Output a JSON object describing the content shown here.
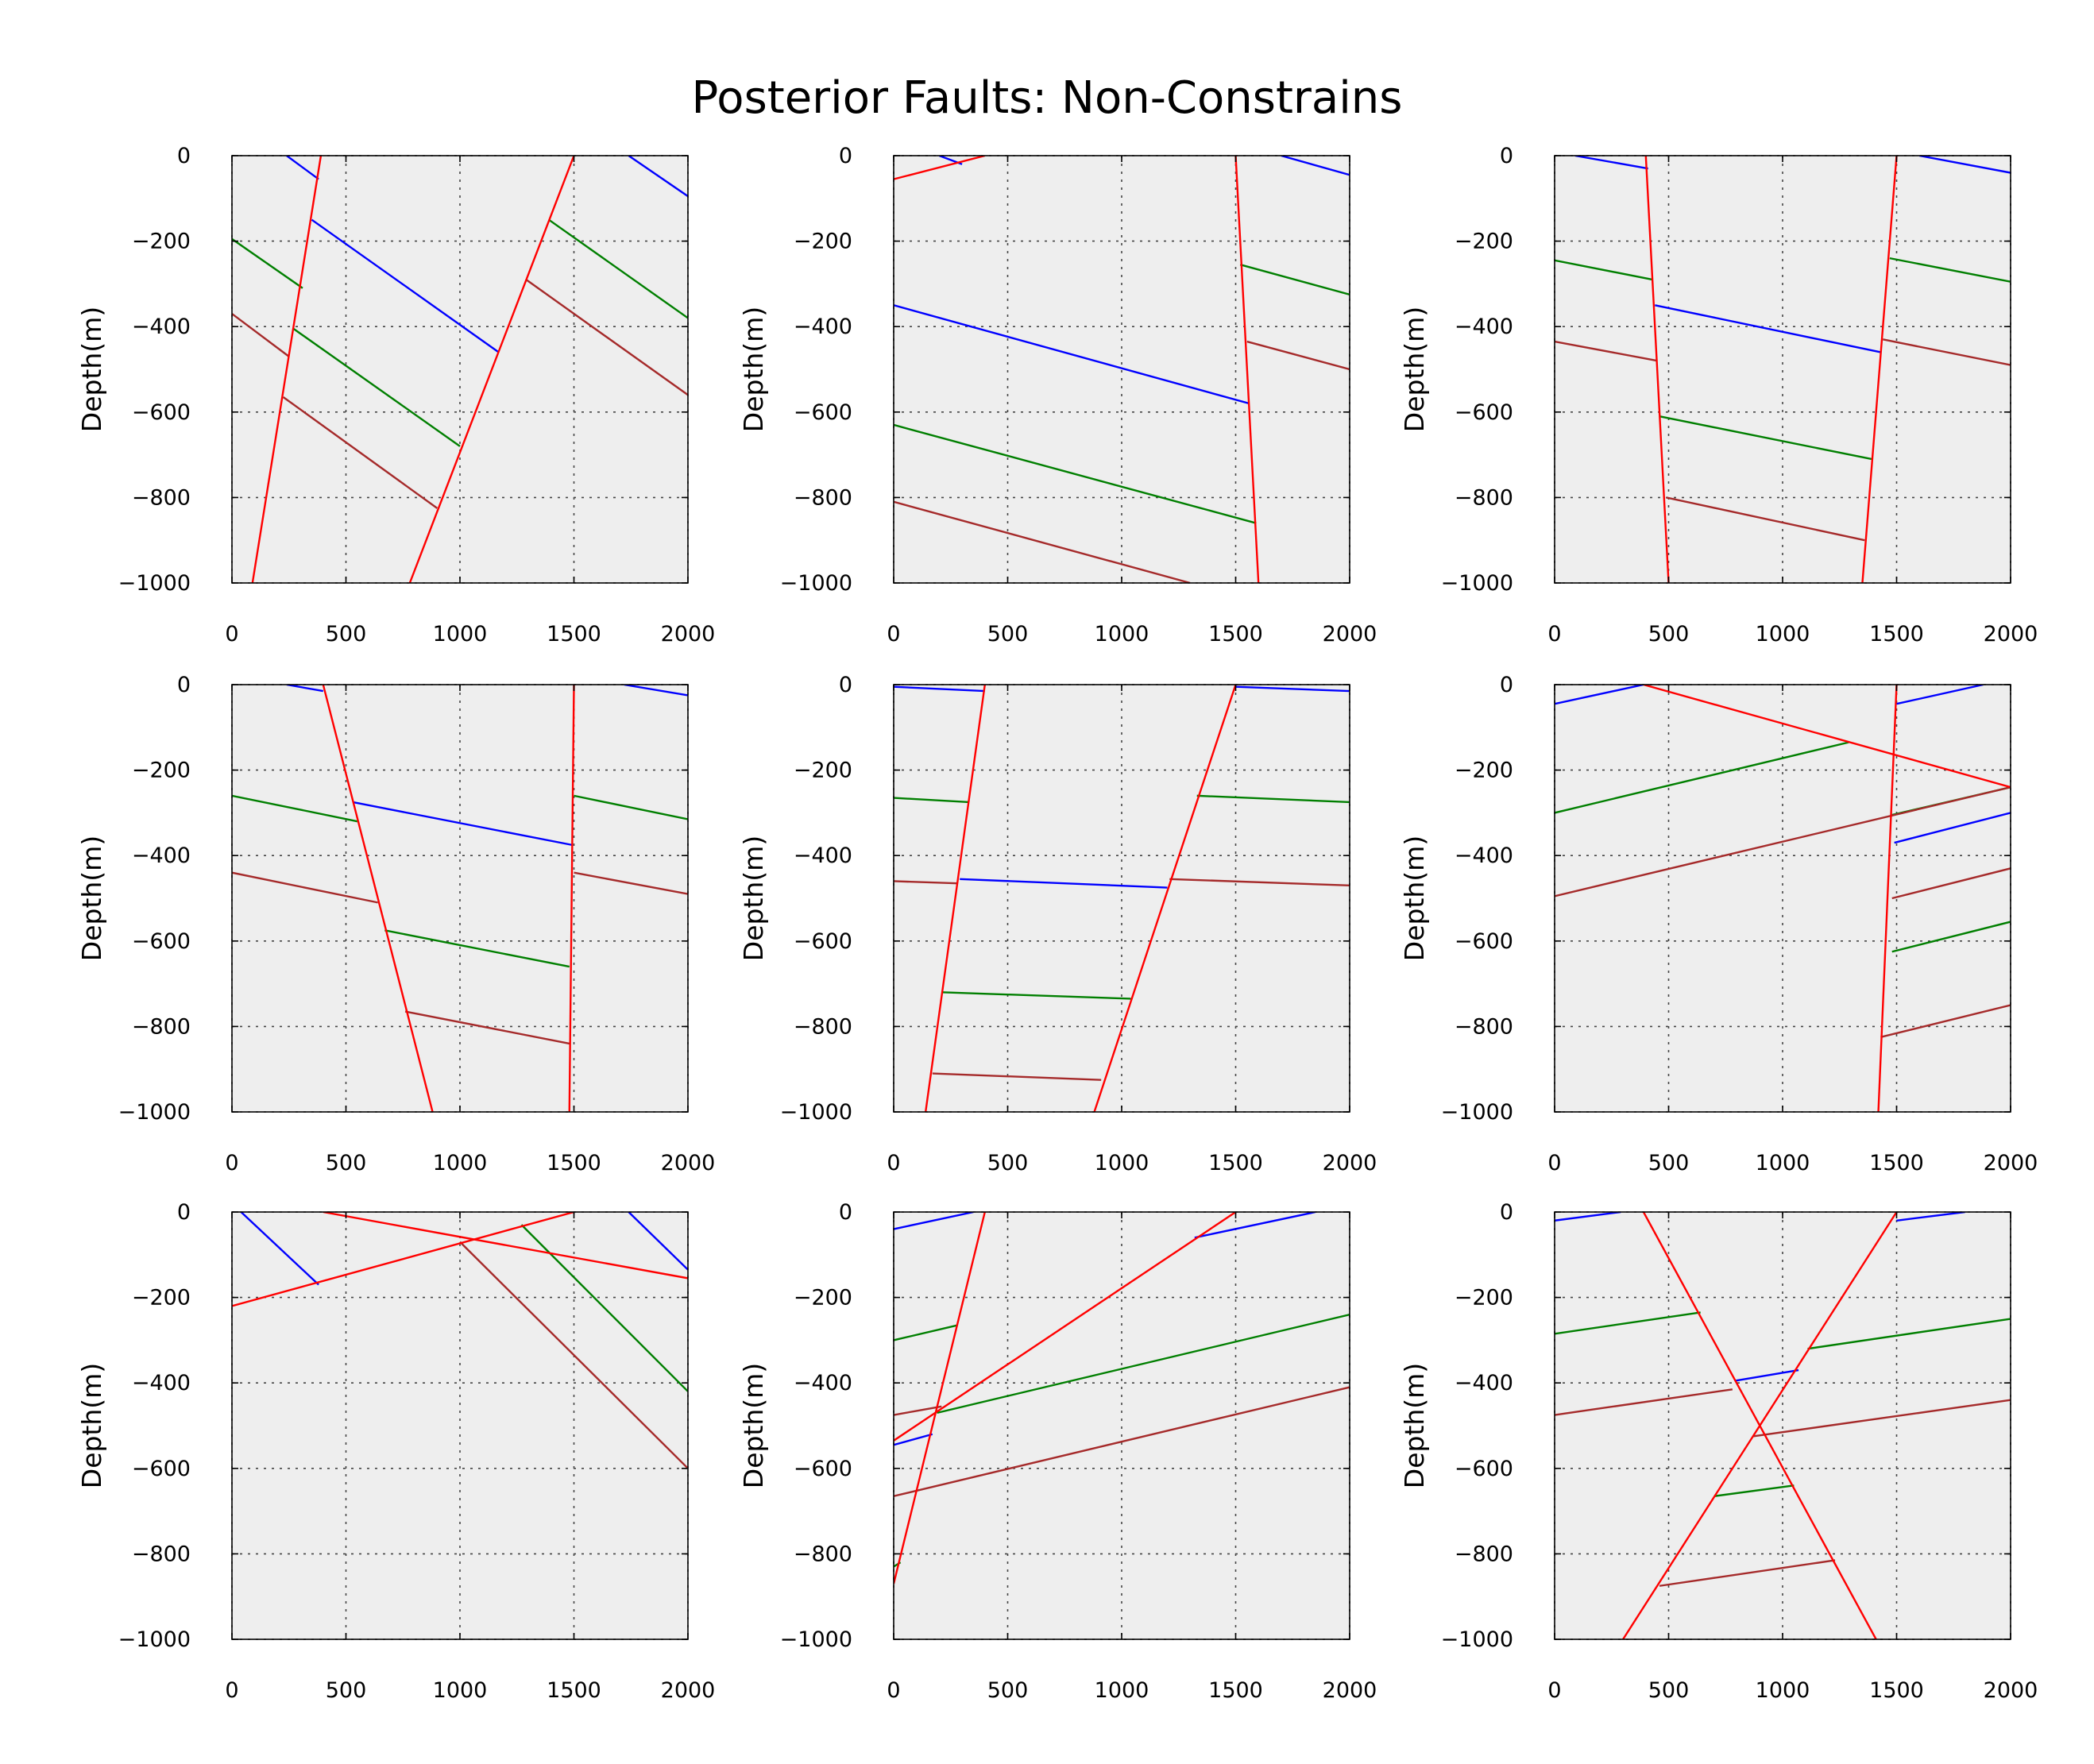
{
  "title": "Posterior Faults: Non-Constrains",
  "colors": {
    "background": "#eeeeee",
    "blue": "#0000ff",
    "green": "#007f00",
    "brown": "#a52a2a",
    "red": "#ff0000"
  },
  "chart_data": [
    {
      "type": "line",
      "ylabel": "Depth(m)",
      "xlim": [
        0,
        2000
      ],
      "ylim": [
        -1000,
        0
      ],
      "xticks": [
        "0",
        "500",
        "1000",
        "1500",
        "2000"
      ],
      "yticks": [
        "0",
        "−200",
        "−400",
        "−600",
        "−800",
        "−1000"
      ],
      "grid": true,
      "segments": [
        {
          "color": "blue",
          "x": [
            240,
            380
          ],
          "y": [
            0,
            -55
          ]
        },
        {
          "color": "blue",
          "x": [
            350,
            1170
          ],
          "y": [
            -150,
            -460
          ]
        },
        {
          "color": "blue",
          "x": [
            1740,
            2000
          ],
          "y": [
            0,
            -95
          ]
        },
        {
          "color": "green",
          "x": [
            0,
            310
          ],
          "y": [
            -195,
            -310
          ]
        },
        {
          "color": "green",
          "x": [
            270,
            1000
          ],
          "y": [
            -405,
            -680
          ]
        },
        {
          "color": "green",
          "x": [
            1390,
            2000
          ],
          "y": [
            -150,
            -380
          ]
        },
        {
          "color": "brown",
          "x": [
            0,
            250
          ],
          "y": [
            -370,
            -470
          ]
        },
        {
          "color": "brown",
          "x": [
            225,
            900
          ],
          "y": [
            -565,
            -825
          ]
        },
        {
          "color": "brown",
          "x": [
            1290,
            2000
          ],
          "y": [
            -290,
            -560
          ]
        },
        {
          "color": "red",
          "x": [
            90,
            390
          ],
          "y": [
            -1000,
            0
          ]
        },
        {
          "color": "red",
          "x": [
            780,
            1500
          ],
          "y": [
            -1000,
            0
          ]
        }
      ]
    },
    {
      "type": "line",
      "ylabel": "Depth(m)",
      "xlim": [
        0,
        2000
      ],
      "ylim": [
        -1000,
        0
      ],
      "xticks": [
        "0",
        "500",
        "1000",
        "1500",
        "2000"
      ],
      "yticks": [
        "0",
        "−200",
        "−400",
        "−600",
        "−800",
        "−1000"
      ],
      "grid": true,
      "segments": [
        {
          "color": "blue",
          "x": [
            200,
            300
          ],
          "y": [
            0,
            -20
          ]
        },
        {
          "color": "blue",
          "x": [
            0,
            1560
          ],
          "y": [
            -350,
            -580
          ]
        },
        {
          "color": "blue",
          "x": [
            1700,
            2000
          ],
          "y": [
            0,
            -45
          ]
        },
        {
          "color": "green",
          "x": [
            0,
            1590
          ],
          "y": [
            -630,
            -860
          ]
        },
        {
          "color": "green",
          "x": [
            1520,
            2000
          ],
          "y": [
            -255,
            -325
          ]
        },
        {
          "color": "brown",
          "x": [
            0,
            1300
          ],
          "y": [
            -810,
            -1000
          ]
        },
        {
          "color": "brown",
          "x": [
            1550,
            2000
          ],
          "y": [
            -435,
            -500
          ]
        },
        {
          "color": "red",
          "x": [
            0,
            400
          ],
          "y": [
            -55,
            0
          ]
        },
        {
          "color": "red",
          "x": [
            1500,
            1600
          ],
          "y": [
            0,
            -1000
          ]
        }
      ]
    },
    {
      "type": "line",
      "ylabel": "Depth(m)",
      "xlim": [
        0,
        2000
      ],
      "ylim": [
        -1000,
        0
      ],
      "xticks": [
        "0",
        "500",
        "1000",
        "1500",
        "2000"
      ],
      "yticks": [
        "0",
        "−200",
        "−400",
        "−600",
        "−800",
        "−1000"
      ],
      "grid": true,
      "segments": [
        {
          "color": "blue",
          "x": [
            90,
            410
          ],
          "y": [
            0,
            -30
          ]
        },
        {
          "color": "blue",
          "x": [
            440,
            1430
          ],
          "y": [
            -350,
            -460
          ]
        },
        {
          "color": "blue",
          "x": [
            1600,
            2000
          ],
          "y": [
            0,
            -40
          ]
        },
        {
          "color": "green",
          "x": [
            0,
            430
          ],
          "y": [
            -245,
            -290
          ]
        },
        {
          "color": "green",
          "x": [
            460,
            1390
          ],
          "y": [
            -610,
            -710
          ]
        },
        {
          "color": "green",
          "x": [
            1470,
            2000
          ],
          "y": [
            -240,
            -295
          ]
        },
        {
          "color": "brown",
          "x": [
            0,
            450
          ],
          "y": [
            -435,
            -480
          ]
        },
        {
          "color": "brown",
          "x": [
            490,
            1360
          ],
          "y": [
            -800,
            -900
          ]
        },
        {
          "color": "brown",
          "x": [
            1440,
            2000
          ],
          "y": [
            -430,
            -490
          ]
        },
        {
          "color": "red",
          "x": [
            400,
            500
          ],
          "y": [
            0,
            -1000
          ]
        },
        {
          "color": "red",
          "x": [
            1500,
            1350
          ],
          "y": [
            0,
            -1000
          ]
        }
      ]
    },
    {
      "type": "line",
      "ylabel": "Depth(m)",
      "xlim": [
        0,
        2000
      ],
      "ylim": [
        -1000,
        0
      ],
      "xticks": [
        "0",
        "500",
        "1000",
        "1500",
        "2000"
      ],
      "yticks": [
        "0",
        "−200",
        "−400",
        "−600",
        "−800",
        "−1000"
      ],
      "grid": true,
      "segments": [
        {
          "color": "blue",
          "x": [
            240,
            400
          ],
          "y": [
            0,
            -15
          ]
        },
        {
          "color": "blue",
          "x": [
            530,
            1490
          ],
          "y": [
            -275,
            -375
          ]
        },
        {
          "color": "blue",
          "x": [
            1720,
            2000
          ],
          "y": [
            0,
            -25
          ]
        },
        {
          "color": "green",
          "x": [
            0,
            550
          ],
          "y": [
            -260,
            -320
          ]
        },
        {
          "color": "green",
          "x": [
            670,
            1480
          ],
          "y": [
            -575,
            -660
          ]
        },
        {
          "color": "green",
          "x": [
            1500,
            2000
          ],
          "y": [
            -260,
            -315
          ]
        },
        {
          "color": "brown",
          "x": [
            0,
            640
          ],
          "y": [
            -440,
            -510
          ]
        },
        {
          "color": "brown",
          "x": [
            760,
            1480
          ],
          "y": [
            -765,
            -840
          ]
        },
        {
          "color": "brown",
          "x": [
            1500,
            2000
          ],
          "y": [
            -440,
            -490
          ]
        },
        {
          "color": "red",
          "x": [
            400,
            880
          ],
          "y": [
            0,
            -1000
          ]
        },
        {
          "color": "red",
          "x": [
            1500,
            1480
          ],
          "y": [
            0,
            -1000
          ]
        }
      ]
    },
    {
      "type": "line",
      "ylabel": "Depth(m)",
      "xlim": [
        0,
        2000
      ],
      "ylim": [
        -1000,
        0
      ],
      "xticks": [
        "0",
        "500",
        "1000",
        "1500",
        "2000"
      ],
      "yticks": [
        "0",
        "−200",
        "−400",
        "−600",
        "−800",
        "−1000"
      ],
      "grid": true,
      "segments": [
        {
          "color": "blue",
          "x": [
            0,
            400
          ],
          "y": [
            -5,
            -15
          ]
        },
        {
          "color": "blue",
          "x": [
            290,
            1200
          ],
          "y": [
            -455,
            -475
          ]
        },
        {
          "color": "blue",
          "x": [
            1500,
            2000
          ],
          "y": [
            -5,
            -15
          ]
        },
        {
          "color": "green",
          "x": [
            0,
            330
          ],
          "y": [
            -265,
            -275
          ]
        },
        {
          "color": "green",
          "x": [
            210,
            1040
          ],
          "y": [
            -720,
            -735
          ]
        },
        {
          "color": "green",
          "x": [
            1330,
            2000
          ],
          "y": [
            -260,
            -275
          ]
        },
        {
          "color": "brown",
          "x": [
            0,
            280
          ],
          "y": [
            -460,
            -465
          ]
        },
        {
          "color": "brown",
          "x": [
            170,
            910
          ],
          "y": [
            -910,
            -925
          ]
        },
        {
          "color": "brown",
          "x": [
            1210,
            2000
          ],
          "y": [
            -455,
            -470
          ]
        },
        {
          "color": "red",
          "x": [
            140,
            400
          ],
          "y": [
            -1000,
            0
          ]
        },
        {
          "color": "red",
          "x": [
            880,
            1500
          ],
          "y": [
            -1000,
            0
          ]
        }
      ]
    },
    {
      "type": "line",
      "ylabel": "Depth(m)",
      "xlim": [
        0,
        2000
      ],
      "ylim": [
        -1000,
        0
      ],
      "xticks": [
        "0",
        "500",
        "1000",
        "1500",
        "2000"
      ],
      "yticks": [
        "0",
        "−200",
        "−400",
        "−600",
        "−800",
        "−1000"
      ],
      "grid": true,
      "segments": [
        {
          "color": "blue",
          "x": [
            0,
            390
          ],
          "y": [
            -45,
            0
          ]
        },
        {
          "color": "blue",
          "x": [
            1500,
            1880
          ],
          "y": [
            -45,
            0
          ]
        },
        {
          "color": "blue",
          "x": [
            1490,
            2000
          ],
          "y": [
            -370,
            -300
          ]
        },
        {
          "color": "green",
          "x": [
            0,
            1290
          ],
          "y": [
            -300,
            -135
          ]
        },
        {
          "color": "green",
          "x": [
            1480,
            2000
          ],
          "y": [
            -305,
            -240
          ]
        },
        {
          "color": "green",
          "x": [
            1480,
            2000
          ],
          "y": [
            -625,
            -555
          ]
        },
        {
          "color": "brown",
          "x": [
            0,
            2000
          ],
          "y": [
            -495,
            -240
          ]
        },
        {
          "color": "brown",
          "x": [
            1480,
            2000
          ],
          "y": [
            -500,
            -430
          ]
        },
        {
          "color": "brown",
          "x": [
            1430,
            2000
          ],
          "y": [
            -825,
            -750
          ]
        },
        {
          "color": "red",
          "x": [
            390,
            2000
          ],
          "y": [
            0,
            -240
          ]
        },
        {
          "color": "red",
          "x": [
            1500,
            1420
          ],
          "y": [
            0,
            -1000
          ]
        }
      ]
    },
    {
      "type": "line",
      "ylabel": "Depth(m)",
      "xlim": [
        0,
        2000
      ],
      "ylim": [
        -1000,
        0
      ],
      "xticks": [
        "0",
        "500",
        "1000",
        "1500",
        "2000"
      ],
      "yticks": [
        "0",
        "−200",
        "−400",
        "−600",
        "−800",
        "−1000"
      ],
      "grid": true,
      "segments": [
        {
          "color": "blue",
          "x": [
            40,
            380
          ],
          "y": [
            0,
            -170
          ]
        },
        {
          "color": "blue",
          "x": [
            1740,
            2000
          ],
          "y": [
            0,
            -135
          ]
        },
        {
          "color": "green",
          "x": [
            1270,
            2000
          ],
          "y": [
            -30,
            -420
          ]
        },
        {
          "color": "brown",
          "x": [
            1000,
            2000
          ],
          "y": [
            -70,
            -600
          ]
        },
        {
          "color": "red",
          "x": [
            0,
            1500
          ],
          "y": [
            -220,
            0
          ]
        },
        {
          "color": "red",
          "x": [
            400,
            2000
          ],
          "y": [
            0,
            -155
          ]
        }
      ]
    },
    {
      "type": "line",
      "ylabel": "Depth(m)",
      "xlim": [
        0,
        2000
      ],
      "ylim": [
        -1000,
        0
      ],
      "xticks": [
        "0",
        "500",
        "1000",
        "1500",
        "2000"
      ],
      "yticks": [
        "0",
        "−200",
        "−400",
        "−600",
        "−800",
        "−1000"
      ],
      "grid": true,
      "segments": [
        {
          "color": "blue",
          "x": [
            0,
            350
          ],
          "y": [
            -40,
            0
          ]
        },
        {
          "color": "blue",
          "x": [
            1320,
            1850
          ],
          "y": [
            -60,
            0
          ]
        },
        {
          "color": "blue",
          "x": [
            0,
            170
          ],
          "y": [
            -545,
            -520
          ]
        },
        {
          "color": "green",
          "x": [
            0,
            280
          ],
          "y": [
            -300,
            -265
          ]
        },
        {
          "color": "green",
          "x": [
            190,
            2000
          ],
          "y": [
            -470,
            -240
          ]
        },
        {
          "color": "green",
          "x": [
            0,
            30
          ],
          "y": [
            -830,
            -820
          ]
        },
        {
          "color": "brown",
          "x": [
            0,
            210
          ],
          "y": [
            -475,
            -455
          ]
        },
        {
          "color": "brown",
          "x": [
            0,
            2000
          ],
          "y": [
            -665,
            -410
          ]
        },
        {
          "color": "red",
          "x": [
            0,
            400
          ],
          "y": [
            -870,
            0
          ]
        },
        {
          "color": "red",
          "x": [
            0,
            1500
          ],
          "y": [
            -535,
            0
          ]
        }
      ]
    },
    {
      "type": "line",
      "ylabel": "Depth(m)",
      "xlim": [
        0,
        2000
      ],
      "ylim": [
        -1000,
        0
      ],
      "xticks": [
        "0",
        "500",
        "1000",
        "1500",
        "2000"
      ],
      "yticks": [
        "0",
        "−200",
        "−400",
        "−600",
        "−800",
        "−1000"
      ],
      "grid": true,
      "segments": [
        {
          "color": "blue",
          "x": [
            0,
            290
          ],
          "y": [
            -20,
            0
          ]
        },
        {
          "color": "blue",
          "x": [
            1500,
            1800
          ],
          "y": [
            -20,
            0
          ]
        },
        {
          "color": "blue",
          "x": [
            790,
            1070
          ],
          "y": [
            -395,
            -370
          ]
        },
        {
          "color": "green",
          "x": [
            0,
            640
          ],
          "y": [
            -285,
            -235
          ]
        },
        {
          "color": "green",
          "x": [
            1110,
            2000
          ],
          "y": [
            -320,
            -250
          ]
        },
        {
          "color": "green",
          "x": [
            700,
            1050
          ],
          "y": [
            -665,
            -640
          ]
        },
        {
          "color": "brown",
          "x": [
            0,
            780
          ],
          "y": [
            -475,
            -415
          ]
        },
        {
          "color": "brown",
          "x": [
            870,
            2000
          ],
          "y": [
            -525,
            -440
          ]
        },
        {
          "color": "brown",
          "x": [
            460,
            1230
          ],
          "y": [
            -875,
            -815
          ]
        },
        {
          "color": "red",
          "x": [
            390,
            1410
          ],
          "y": [
            0,
            -1000
          ]
        },
        {
          "color": "red",
          "x": [
            300,
            1500
          ],
          "y": [
            -1000,
            0
          ]
        }
      ]
    }
  ]
}
